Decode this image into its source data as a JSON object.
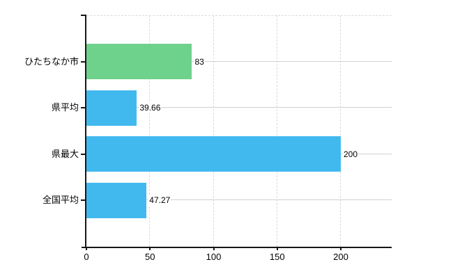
{
  "chart_data": {
    "type": "bar",
    "orientation": "horizontal",
    "categories": [
      "ひたちなか市",
      "県平均",
      "県最大",
      "全国平均"
    ],
    "values": [
      83,
      39.66,
      200,
      47.27
    ],
    "value_labels": [
      "83",
      "39.66",
      "200",
      "47.27"
    ],
    "bar_colors": [
      "#6ed18c",
      "#41b9ef",
      "#41b9ef",
      "#41b9ef"
    ],
    "x_ticks": [
      0,
      50,
      100,
      150,
      200
    ],
    "x_tick_labels": [
      "0",
      "50",
      "100",
      "150",
      "200"
    ],
    "xlim": [
      0,
      240
    ],
    "grid": true,
    "legend_visible": false
  },
  "colors": {
    "highlight_bar": "#6ed18c",
    "default_bar": "#41b9ef",
    "axis": "#161616",
    "vertical_gridline": "#d9d9d9",
    "horizontal_gridline": "#ccd3cc",
    "text": "#000000",
    "background": "#ffffff"
  }
}
